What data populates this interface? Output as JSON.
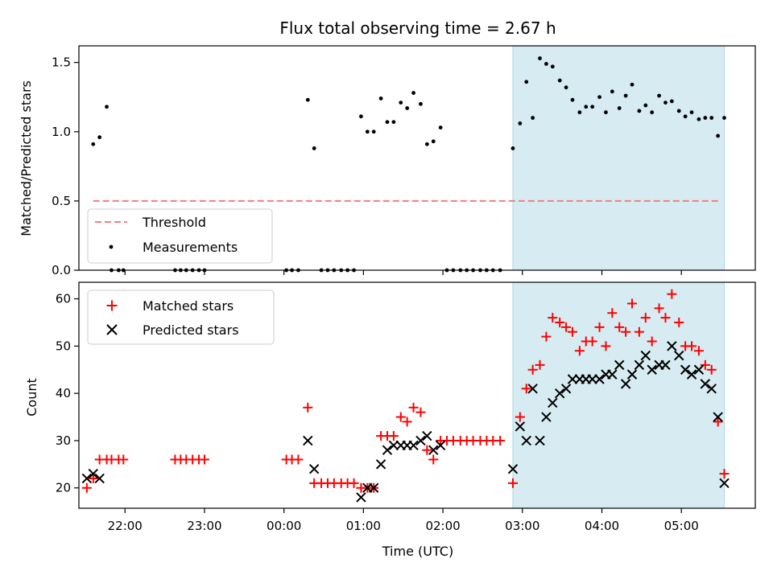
{
  "colors": {
    "threshold": "#f08080",
    "measurements": "#000000",
    "matched": "#ff0000",
    "predicted": "#000000",
    "highlight": "#add8e6"
  },
  "chart_data": [
    {
      "type": "scatter",
      "title": "Flux total observing time = 2.67 h",
      "xlabel": "",
      "ylabel": "Matched/Predicted stars",
      "ylim": [
        0,
        1.62
      ],
      "yticks": [
        "0.0",
        "0.5",
        "1.0",
        "1.5"
      ],
      "xlim": [
        21.42,
        5.93
      ],
      "highlight_span": [
        2.88,
        5.54
      ],
      "legend": {
        "position": "lower-left",
        "entries": [
          "Threshold",
          "Measurements"
        ]
      },
      "threshold": {
        "name": "Threshold",
        "value": 0.5,
        "x_range": [
          21.6,
          5.48
        ]
      },
      "series": [
        {
          "name": "Measurements",
          "x": [
            21.6,
            21.68,
            21.77,
            21.83,
            21.92,
            21.98,
            22.63,
            22.7,
            22.77,
            22.85,
            22.93,
            23.0,
            0.03,
            0.1,
            0.18,
            0.3,
            0.38,
            0.47,
            0.55,
            0.63,
            0.72,
            0.8,
            0.88,
            0.97,
            1.05,
            1.13,
            1.22,
            1.3,
            1.38,
            1.47,
            1.55,
            1.63,
            1.72,
            1.8,
            1.88,
            1.97,
            2.05,
            2.13,
            2.22,
            2.3,
            2.38,
            2.47,
            2.55,
            2.63,
            2.72,
            2.88,
            2.97,
            3.05,
            3.13,
            3.22,
            3.3,
            3.38,
            3.47,
            3.55,
            3.63,
            3.72,
            3.8,
            3.88,
            3.97,
            4.05,
            4.13,
            4.22,
            4.3,
            4.38,
            4.47,
            4.55,
            4.63,
            4.72,
            4.8,
            4.88,
            4.97,
            5.05,
            5.13,
            5.22,
            5.3,
            5.38,
            5.46,
            5.54
          ],
          "y": [
            0.91,
            0.96,
            1.18,
            0,
            0,
            0,
            0,
            0,
            0,
            0,
            0,
            0,
            0,
            0,
            0,
            1.23,
            0.88,
            0,
            0,
            0,
            0,
            0,
            0,
            1.11,
            1.0,
            1.0,
            1.24,
            1.07,
            1.07,
            1.21,
            1.17,
            1.28,
            1.2,
            0.91,
            0.93,
            1.03,
            0,
            0,
            0,
            0,
            0,
            0,
            0,
            0,
            0,
            0.88,
            1.06,
            1.36,
            1.1,
            1.53,
            1.49,
            1.47,
            1.37,
            1.32,
            1.23,
            1.14,
            1.18,
            1.18,
            1.25,
            1.14,
            1.29,
            1.17,
            1.26,
            1.34,
            1.15,
            1.19,
            1.14,
            1.26,
            1.21,
            1.22,
            1.15,
            1.11,
            1.14,
            1.09,
            1.1,
            1.1,
            0.97,
            1.1
          ]
        }
      ]
    },
    {
      "type": "scatter",
      "title": "",
      "xlabel": "Time (UTC)",
      "ylabel": "Count",
      "ylim": [
        15.7,
        63.5
      ],
      "yticks": [
        "20",
        "30",
        "40",
        "50",
        "60"
      ],
      "xticks": [
        "22:00",
        "23:00",
        "00:00",
        "01:00",
        "02:00",
        "03:00",
        "04:00",
        "05:00"
      ],
      "xlim": [
        21.42,
        5.93
      ],
      "highlight_span": [
        2.88,
        5.54
      ],
      "legend": {
        "position": "top-left",
        "entries": [
          "Matched stars",
          "Predicted stars"
        ]
      },
      "series": [
        {
          "name": "Matched stars",
          "marker": "plus",
          "x": [
            21.52,
            21.6,
            21.68,
            21.77,
            21.83,
            21.92,
            21.98,
            22.63,
            22.7,
            22.77,
            22.85,
            22.93,
            23.0,
            0.03,
            0.1,
            0.18,
            0.3,
            0.38,
            0.47,
            0.55,
            0.63,
            0.72,
            0.8,
            0.88,
            0.97,
            1.05,
            1.13,
            1.22,
            1.3,
            1.38,
            1.47,
            1.55,
            1.63,
            1.72,
            1.8,
            1.88,
            1.97,
            2.05,
            2.13,
            2.22,
            2.3,
            2.38,
            2.47,
            2.55,
            2.63,
            2.72,
            2.88,
            2.97,
            3.05,
            3.13,
            3.22,
            3.3,
            3.38,
            3.47,
            3.55,
            3.63,
            3.72,
            3.8,
            3.88,
            3.97,
            4.05,
            4.13,
            4.22,
            4.3,
            4.38,
            4.47,
            4.55,
            4.63,
            4.72,
            4.8,
            4.88,
            4.97,
            5.05,
            5.13,
            5.22,
            5.3,
            5.38,
            5.46,
            5.54
          ],
          "y": [
            20,
            22,
            26,
            26,
            26,
            26,
            26,
            26,
            26,
            26,
            26,
            26,
            26,
            26,
            26,
            26,
            37,
            21,
            21,
            21,
            21,
            21,
            21,
            21,
            20,
            20,
            20,
            31,
            31,
            31,
            35,
            34,
            37,
            36,
            28,
            26,
            30,
            30,
            30,
            30,
            30,
            30,
            30,
            30,
            30,
            30,
            21,
            35,
            41,
            45,
            46,
            52,
            56,
            55,
            54,
            53,
            49,
            51,
            51,
            54,
            50,
            57,
            54,
            53,
            59,
            53,
            56,
            51,
            58,
            56,
            61,
            55,
            50,
            50,
            49,
            46,
            45,
            34,
            23
          ]
        },
        {
          "name": "Predicted stars",
          "marker": "x",
          "x": [
            21.52,
            21.6,
            21.68,
            0.3,
            0.38,
            0.97,
            1.05,
            1.13,
            1.22,
            1.3,
            1.38,
            1.47,
            1.55,
            1.63,
            1.72,
            1.8,
            1.88,
            1.97,
            2.88,
            2.97,
            3.05,
            3.13,
            3.22,
            3.3,
            3.38,
            3.47,
            3.55,
            3.63,
            3.72,
            3.8,
            3.88,
            3.97,
            4.05,
            4.13,
            4.22,
            4.3,
            4.38,
            4.47,
            4.55,
            4.63,
            4.72,
            4.8,
            4.88,
            4.97,
            5.05,
            5.13,
            5.22,
            5.3,
            5.38,
            5.46,
            5.54
          ],
          "y": [
            22,
            23,
            22,
            30,
            24,
            18,
            20,
            20,
            25,
            28,
            29,
            29,
            29,
            29,
            30,
            31,
            28,
            29,
            24,
            33,
            30,
            41,
            30,
            35,
            38,
            40,
            41,
            43,
            43,
            43,
            43,
            43,
            44,
            44,
            46,
            42,
            44,
            46,
            48,
            45,
            46,
            46,
            50,
            48,
            45,
            44,
            45,
            42,
            41,
            35,
            21
          ]
        }
      ]
    }
  ]
}
